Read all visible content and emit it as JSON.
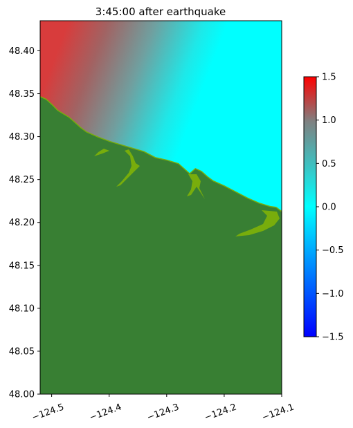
{
  "chart_data": {
    "type": "heatmap",
    "title": "3:45:00 after earthquake",
    "xlabel": "",
    "ylabel": "",
    "xlim": [
      -124.52,
      -124.1
    ],
    "ylim": [
      48.0,
      48.435
    ],
    "xticks": [
      {
        "value": -124.5,
        "label": "−124.5"
      },
      {
        "value": -124.4,
        "label": "−124.4"
      },
      {
        "value": -124.3,
        "label": "−124.3"
      },
      {
        "value": -124.2,
        "label": "−124.2"
      },
      {
        "value": -124.1,
        "label": "−124.1"
      }
    ],
    "yticks": [
      {
        "value": 48.0,
        "label": "48.00"
      },
      {
        "value": 48.05,
        "label": "48.05"
      },
      {
        "value": 48.1,
        "label": "48.10"
      },
      {
        "value": 48.15,
        "label": "48.15"
      },
      {
        "value": 48.2,
        "label": "48.20"
      },
      {
        "value": 48.25,
        "label": "48.25"
      },
      {
        "value": 48.3,
        "label": "48.30"
      },
      {
        "value": 48.35,
        "label": "48.35"
      },
      {
        "value": 48.4,
        "label": "48.40"
      }
    ],
    "colorbar": {
      "range": [
        -1.5,
        1.5
      ],
      "ticks": [
        {
          "value": 1.5,
          "label": "1.5"
        },
        {
          "value": 1.0,
          "label": "1.0"
        },
        {
          "value": 0.5,
          "label": "0.5"
        },
        {
          "value": 0.0,
          "label": "0.0"
        },
        {
          "value": -0.5,
          "label": "−0.5"
        },
        {
          "value": -1.0,
          "label": "−1.0"
        },
        {
          "value": -1.5,
          "label": "−1.5"
        }
      ],
      "colors": [
        "#0000ff",
        "#00ffff",
        "#808080",
        "#ff0000"
      ]
    },
    "land_color": "#387f33",
    "shore_color": "#78ad0c",
    "coastline": [
      [
        -124.52,
        48.346
      ],
      [
        -124.51,
        48.343
      ],
      [
        -124.5,
        48.337
      ],
      [
        -124.49,
        48.33
      ],
      [
        -124.48,
        48.326
      ],
      [
        -124.47,
        48.322
      ],
      [
        -124.46,
        48.316
      ],
      [
        -124.45,
        48.31
      ],
      [
        -124.44,
        48.305
      ],
      [
        -124.42,
        48.299
      ],
      [
        -124.4,
        48.294
      ],
      [
        -124.38,
        48.29
      ],
      [
        -124.36,
        48.286
      ],
      [
        -124.34,
        48.282
      ],
      [
        -124.32,
        48.275
      ],
      [
        -124.3,
        48.272
      ],
      [
        -124.28,
        48.268
      ],
      [
        -124.27,
        48.262
      ],
      [
        -124.26,
        48.256
      ],
      [
        -124.25,
        48.262
      ],
      [
        -124.24,
        48.259
      ],
      [
        -124.23,
        48.253
      ],
      [
        -124.22,
        48.248
      ],
      [
        -124.2,
        48.242
      ],
      [
        -124.18,
        48.235
      ],
      [
        -124.16,
        48.228
      ],
      [
        -124.14,
        48.222
      ],
      [
        -124.12,
        48.218
      ],
      [
        -124.11,
        48.217
      ],
      [
        -124.1,
        48.212
      ]
    ]
  }
}
